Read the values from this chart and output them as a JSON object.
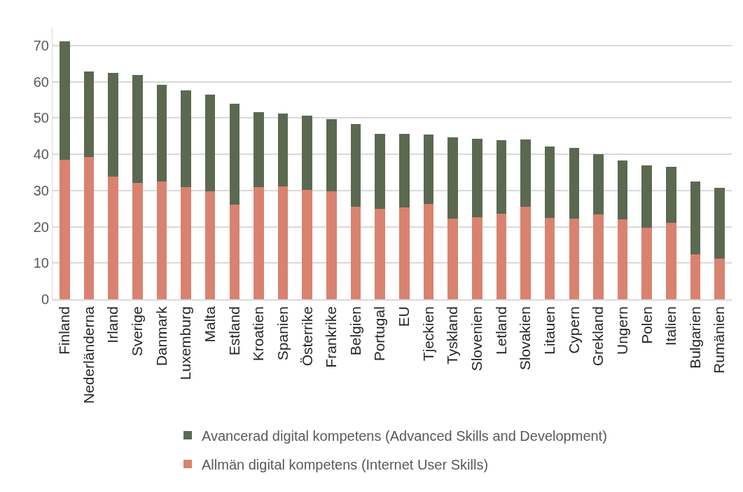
{
  "chart_data": {
    "type": "bar",
    "stacked": true,
    "categories": [
      "Finland",
      "Nederländerna",
      "Irland",
      "Sverige",
      "Danmark",
      "Luxemburg",
      "Malta",
      "Estland",
      "Kroatien",
      "Spanien",
      "Österrike",
      "Frankrike",
      "Belgien",
      "Portugal",
      "EU",
      "Tjeckien",
      "Tyskland",
      "Slovenien",
      "Letland",
      "Slovakien",
      "Litauen",
      "Cypern",
      "Grekland",
      "Ungern",
      "Polen",
      "Italien",
      "Bulgarien",
      "Rumänien"
    ],
    "series": [
      {
        "name": "Allmän digital kompetens (Internet User Skills)",
        "color": "#d9826f",
        "values": [
          38.5,
          39.2,
          33.8,
          32.1,
          32.5,
          31.0,
          29.8,
          26.0,
          31.0,
          31.2,
          30.2,
          29.7,
          25.5,
          25.0,
          25.3,
          26.3,
          22.2,
          22.7,
          23.5,
          25.5,
          22.5,
          22.3,
          23.3,
          22.0,
          19.8,
          21.0,
          12.3,
          11.3
        ]
      },
      {
        "name": "Avancerad digital kompetens (Advanced Skills and Development)",
        "color": "#5b6951",
        "values": [
          32.6,
          23.7,
          28.6,
          29.8,
          26.7,
          26.6,
          26.6,
          27.9,
          20.6,
          20.0,
          20.4,
          20.0,
          22.9,
          20.7,
          20.4,
          19.1,
          22.4,
          21.5,
          20.4,
          18.5,
          19.7,
          19.4,
          16.7,
          16.2,
          17.2,
          15.5,
          20.2,
          19.5
        ]
      }
    ],
    "ylim": [
      0,
      75
    ],
    "yticks": [
      0,
      10,
      20,
      30,
      40,
      50,
      60,
      70
    ],
    "grid": "y",
    "legend": "bottom"
  }
}
